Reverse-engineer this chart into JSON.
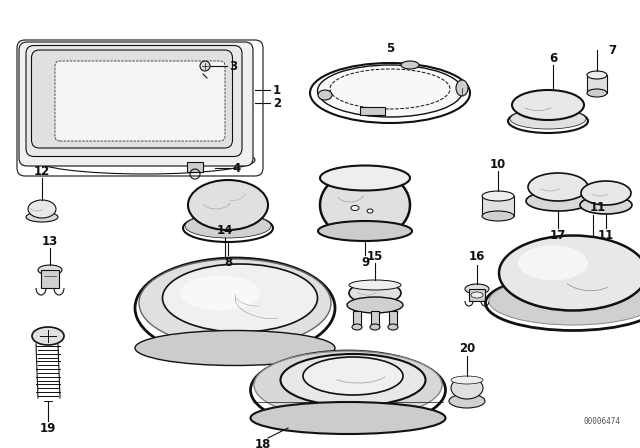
{
  "bg_color": "#ffffff",
  "lc": "#111111",
  "catalog_number": "00006474",
  "figw": 6.4,
  "figh": 4.48,
  "dpi": 100
}
